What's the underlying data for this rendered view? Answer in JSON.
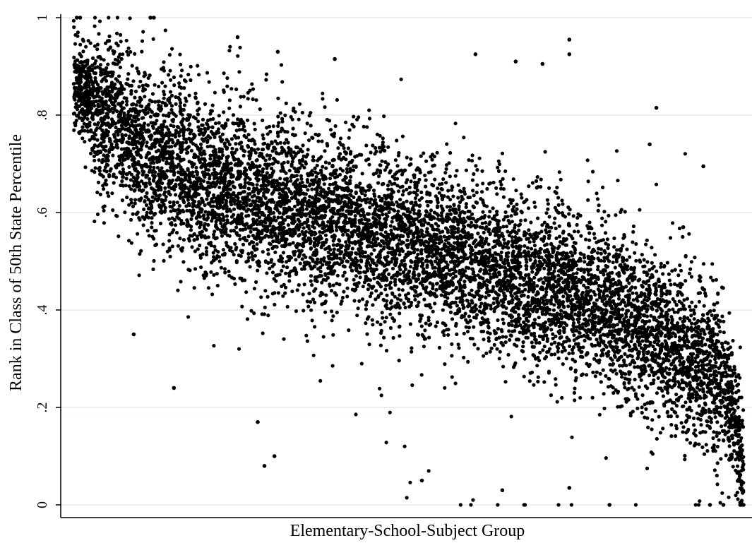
{
  "chart_data": {
    "type": "scatter",
    "title": "",
    "xlabel": "Elementary-School-Subject Group",
    "ylabel": "Rank in Class of 50th State Percentile",
    "ylim": [
      0,
      1
    ],
    "yticks": [
      {
        "value": 0,
        "label": "0"
      },
      {
        "value": 0.2,
        "label": ".2"
      },
      {
        "value": 0.4,
        "label": ".4"
      },
      {
        "value": 0.6,
        "label": ".6"
      },
      {
        "value": 0.8,
        "label": ".8"
      },
      {
        "value": 1,
        "label": "1"
      }
    ],
    "xticks": [],
    "grid": "horizontal",
    "legend": "none",
    "marker_color": "#000000",
    "grid_color": "#dbe8ec",
    "series_summary": {
      "x_description": "groups ordered left to right by descending rank",
      "trend": [
        {
          "x": 0.0,
          "y": 0.88
        },
        {
          "x": 0.05,
          "y": 0.78
        },
        {
          "x": 0.2,
          "y": 0.66
        },
        {
          "x": 0.4,
          "y": 0.58
        },
        {
          "x": 0.55,
          "y": 0.52
        },
        {
          "x": 0.75,
          "y": 0.43
        },
        {
          "x": 0.9,
          "y": 0.33
        },
        {
          "x": 0.97,
          "y": 0.25
        },
        {
          "x": 1.0,
          "y": 0.1
        }
      ],
      "visible_outliers": [
        {
          "x": 0.005,
          "y": 1.0
        },
        {
          "x": 0.01,
          "y": 1.0
        },
        {
          "x": 0.115,
          "y": 1.0
        },
        {
          "x": 0.12,
          "y": 1.0
        },
        {
          "x": 0.245,
          "y": 0.96
        },
        {
          "x": 0.305,
          "y": 0.93
        },
        {
          "x": 0.39,
          "y": 0.915
        },
        {
          "x": 0.6,
          "y": 0.925
        },
        {
          "x": 0.66,
          "y": 0.91
        },
        {
          "x": 0.7,
          "y": 0.905
        },
        {
          "x": 0.74,
          "y": 0.955
        },
        {
          "x": 0.74,
          "y": 0.925
        },
        {
          "x": 0.87,
          "y": 0.815
        },
        {
          "x": 0.86,
          "y": 0.74
        },
        {
          "x": 0.94,
          "y": 0.695
        },
        {
          "x": 0.91,
          "y": 0.57
        },
        {
          "x": 0.09,
          "y": 0.35
        },
        {
          "x": 0.15,
          "y": 0.24
        },
        {
          "x": 0.275,
          "y": 0.17
        },
        {
          "x": 0.285,
          "y": 0.08
        },
        {
          "x": 0.3,
          "y": 0.1
        },
        {
          "x": 0.52,
          "y": 0.05
        },
        {
          "x": 0.64,
          "y": 0.03
        },
        {
          "x": 0.74,
          "y": 0.035
        },
        {
          "x": 0.8,
          "y": 0.0
        },
        {
          "x": 0.95,
          "y": 0.0
        },
        {
          "x": 0.97,
          "y": 0.0
        },
        {
          "x": 0.995,
          "y": 0.0
        },
        {
          "x": 1.0,
          "y": 0.0
        }
      ]
    }
  }
}
